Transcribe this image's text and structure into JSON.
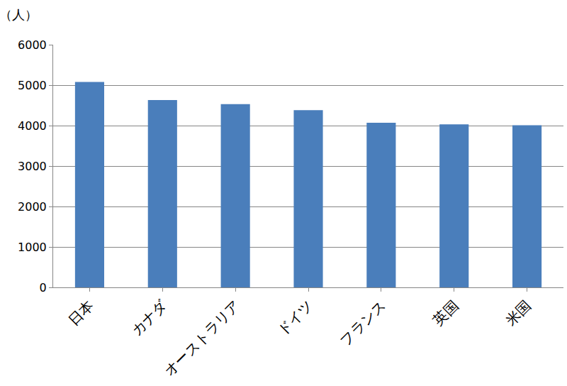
{
  "chart_data": {
    "type": "bar",
    "ylabel": "（人）",
    "categories": [
      "日本",
      "カナダ",
      "オーストラリア",
      "ドイツ",
      "フランス",
      "英国",
      "米国"
    ],
    "values": [
      5080,
      4630,
      4530,
      4380,
      4070,
      4030,
      4010
    ],
    "color": "#4a7ebb",
    "ylim": [
      0,
      6000
    ],
    "yticks": [
      0,
      1000,
      2000,
      3000,
      4000,
      5000,
      6000
    ],
    "grid": true
  }
}
